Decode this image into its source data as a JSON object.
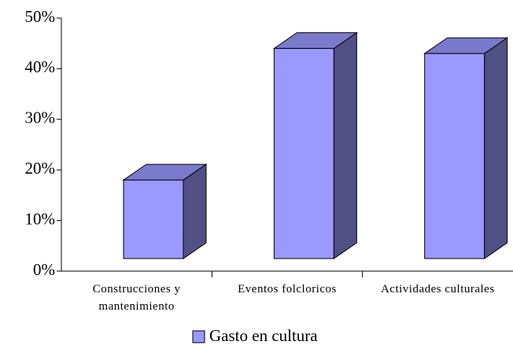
{
  "chart_data": {
    "type": "bar3d",
    "categories": [
      "Construcciones y mantenimiento",
      "Eventos folcloricos",
      "Actividades culturales"
    ],
    "series": [
      {
        "name": "Gasto en cultura",
        "color": "#9999ff",
        "values": [
          18,
          44,
          43
        ]
      }
    ],
    "ylim": [
      0,
      50
    ],
    "yticks": [
      {
        "value": 0,
        "label": "0%"
      },
      {
        "value": 10,
        "label": "10%"
      },
      {
        "value": 20,
        "label": "20%"
      },
      {
        "value": 30,
        "label": "30%"
      },
      {
        "value": 40,
        "label": "40%"
      },
      {
        "value": 50,
        "label": "50%"
      }
    ],
    "legend": "bottom"
  }
}
